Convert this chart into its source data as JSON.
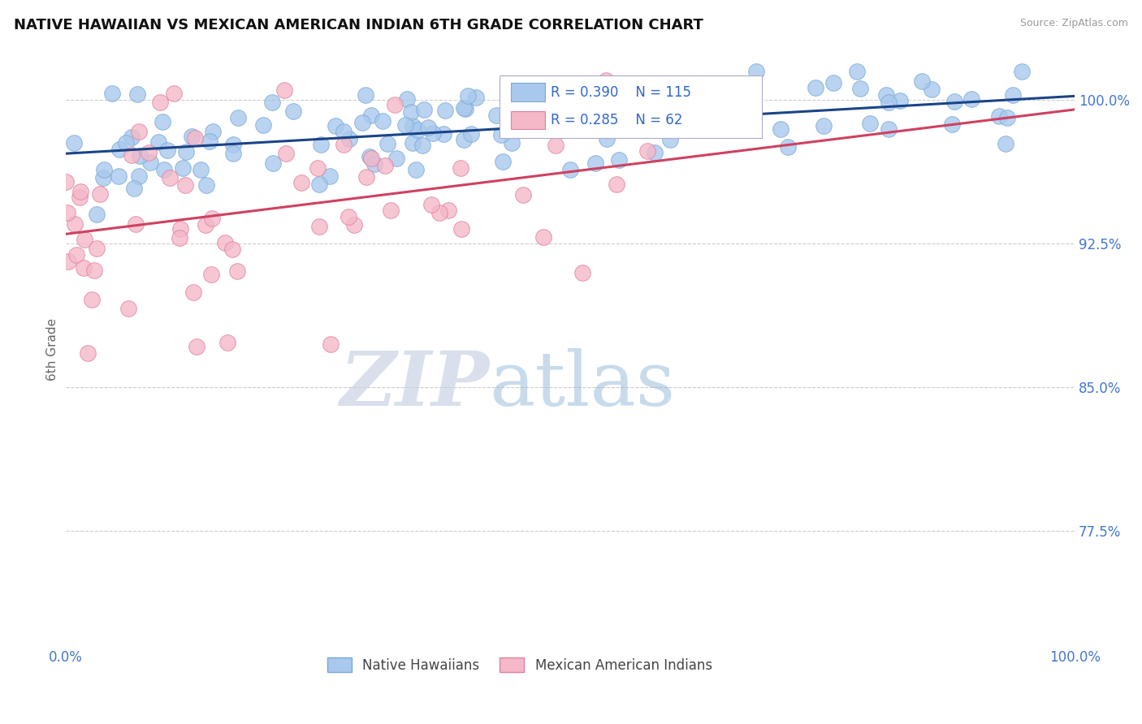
{
  "title": "NATIVE HAWAIIAN VS MEXICAN AMERICAN INDIAN 6TH GRADE CORRELATION CHART",
  "source_text": "Source: ZipAtlas.com",
  "ylabel": "6th Grade",
  "x_min": 0.0,
  "x_max": 1.0,
  "y_min": 0.715,
  "y_max": 1.025,
  "y_ticks": [
    0.775,
    0.85,
    0.925,
    1.0
  ],
  "y_tick_labels": [
    "77.5%",
    "85.0%",
    "92.5%",
    "100.0%"
  ],
  "x_ticks": [
    0.0,
    0.25,
    0.5,
    0.75,
    1.0
  ],
  "x_tick_labels": [
    "0.0%",
    "",
    "",
    "",
    "100.0%"
  ],
  "series_blue": {
    "label": "Native Hawaiians",
    "color": "#a8c8ed",
    "edge_color": "#7aaad4",
    "R": 0.39,
    "N": 115,
    "trend_color": "#1a4488"
  },
  "series_pink": {
    "label": "Mexican American Indians",
    "color": "#f4b8c8",
    "edge_color": "#e080a0",
    "R": 0.285,
    "N": 62,
    "trend_color": "#d04060"
  },
  "legend_text_color": "#3366cc",
  "watermark_zip": "ZIP",
  "watermark_atlas": "atlas",
  "watermark_color_zip": "#c0cce0",
  "watermark_color_atlas": "#90b8d8",
  "title_fontsize": 13,
  "tick_label_color": "#4477cc",
  "grid_color": "#cccccc",
  "background_color": "#ffffff",
  "blue_trend_start_y": 0.972,
  "blue_trend_end_y": 1.002,
  "pink_trend_start_y": 0.93,
  "pink_trend_end_y": 0.995
}
